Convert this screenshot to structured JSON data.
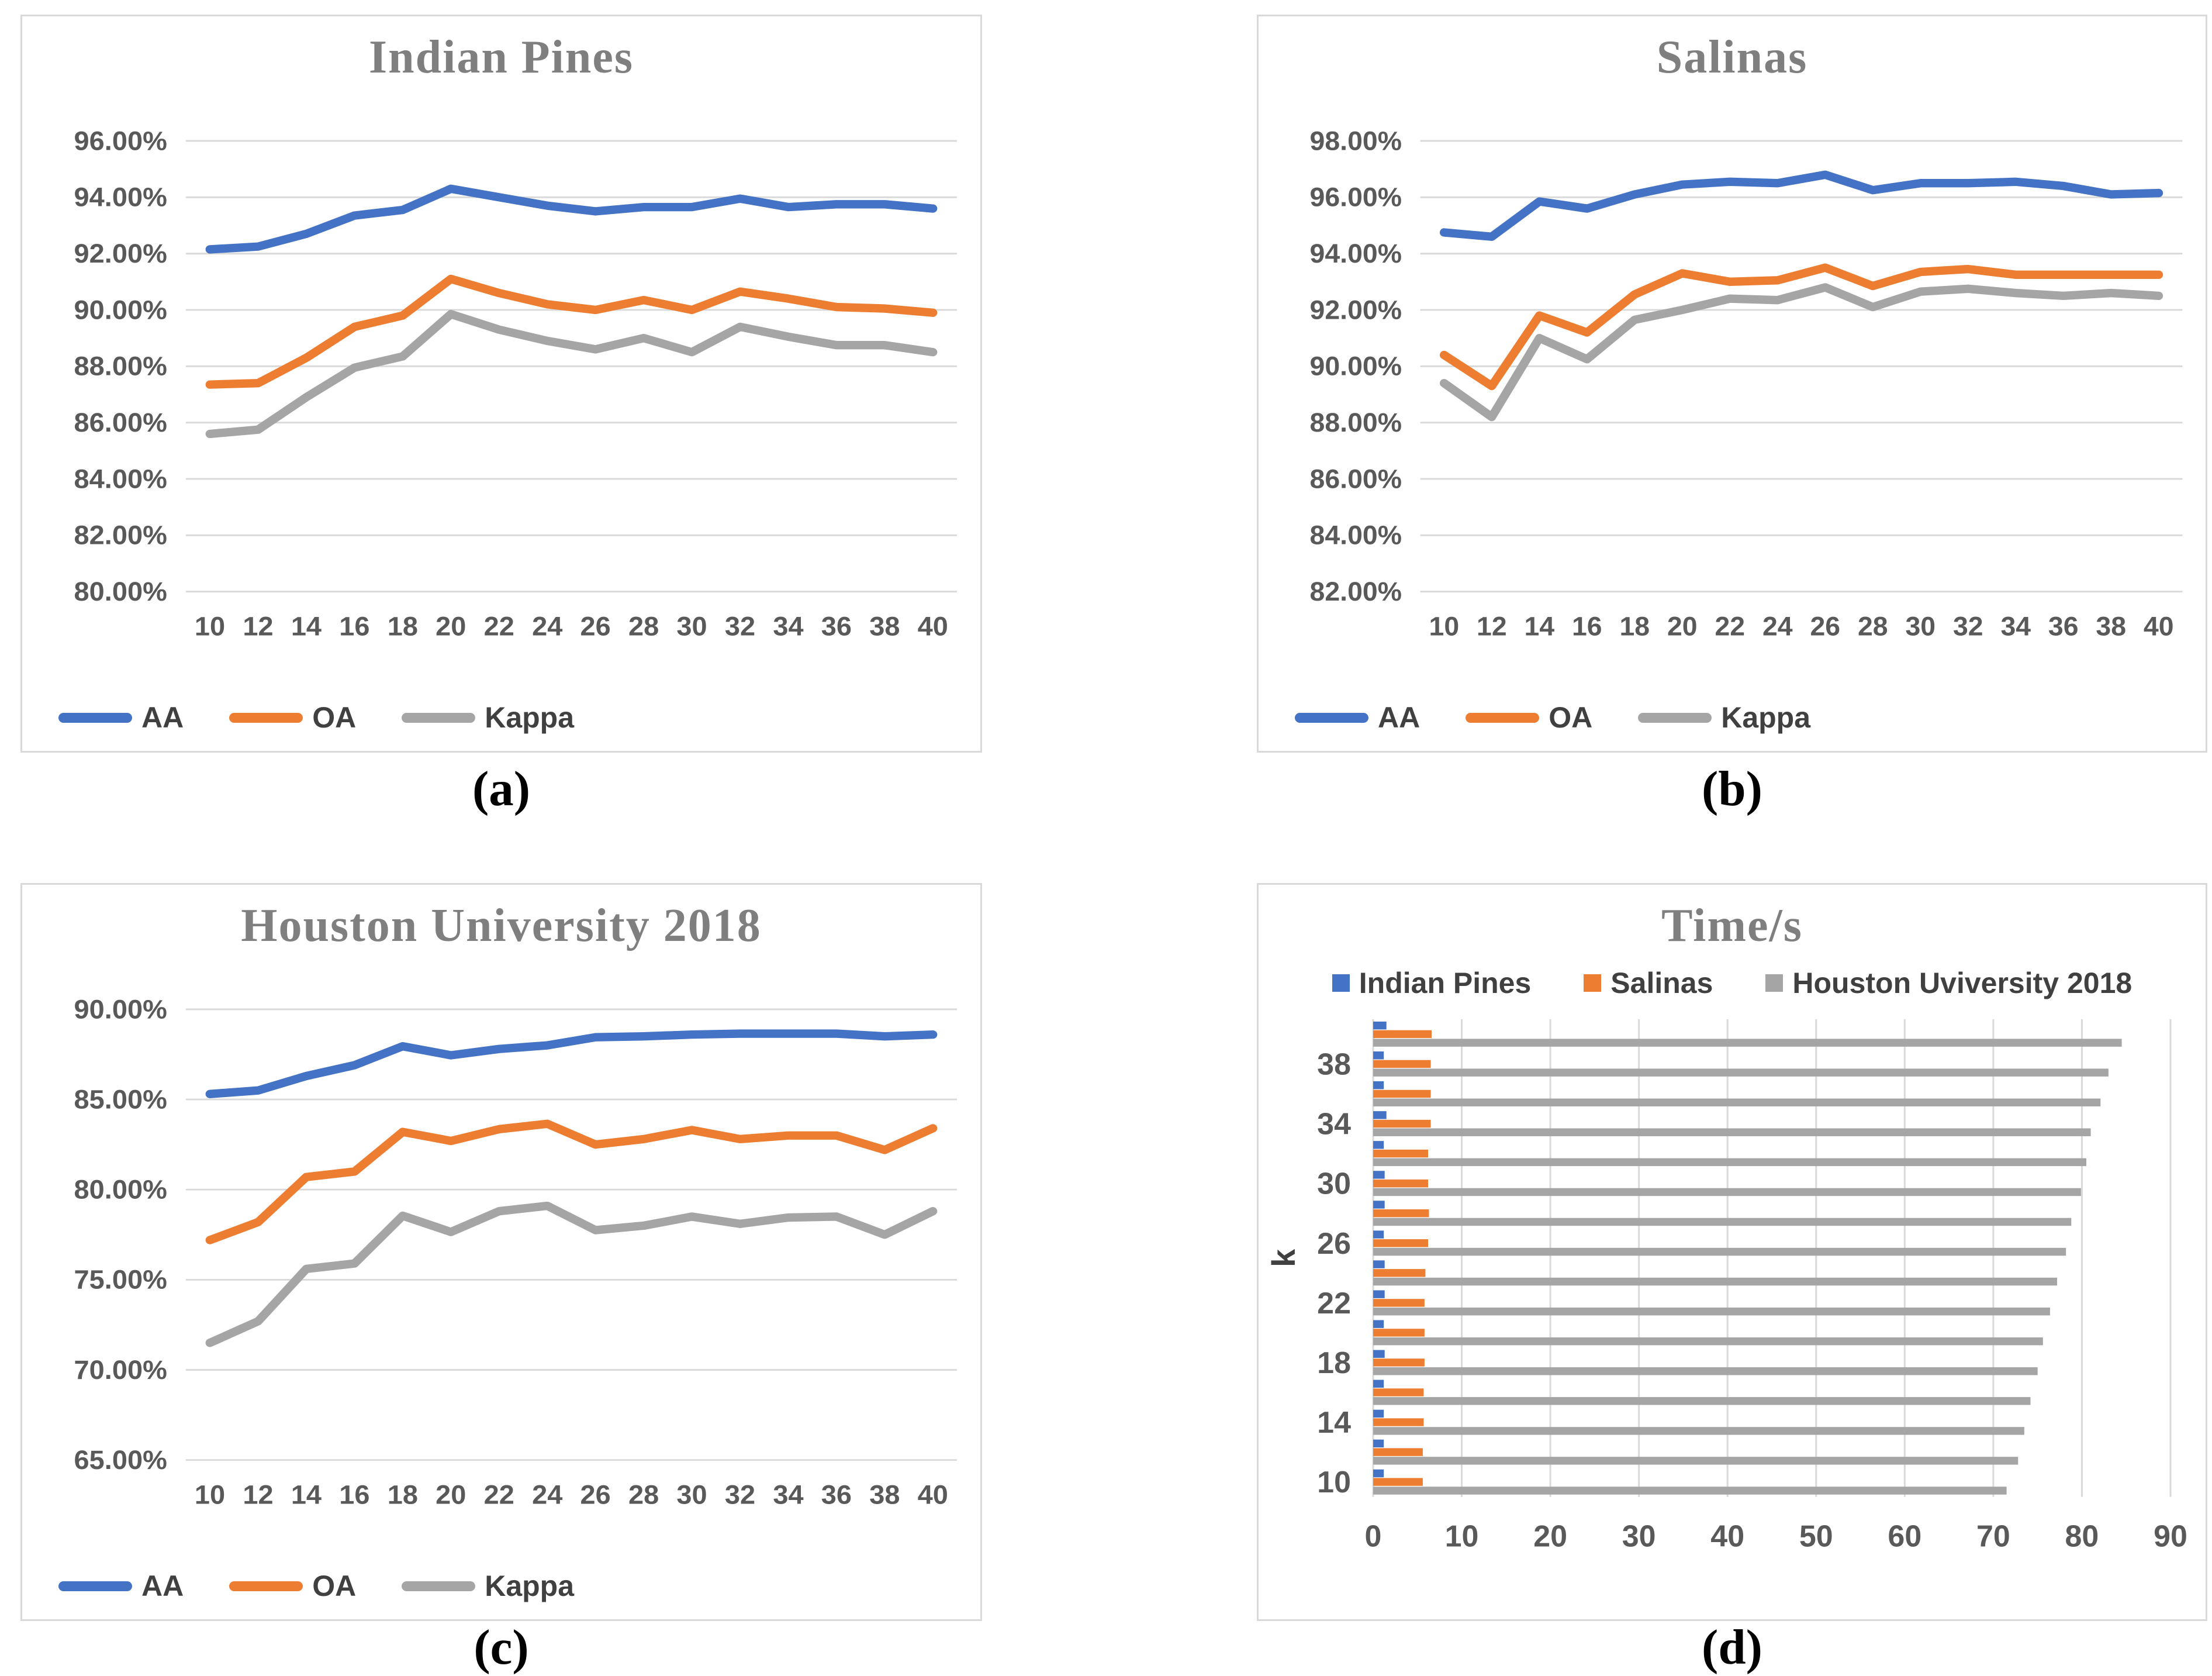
{
  "chart_data": [
    {
      "type": "line",
      "title": "Indian Pines",
      "caption": "(a)",
      "x": [
        10,
        12,
        14,
        16,
        18,
        20,
        22,
        24,
        26,
        28,
        30,
        32,
        34,
        36,
        38,
        40
      ],
      "xlabel": "",
      "ylabel": "",
      "ylim": [
        80,
        96
      ],
      "ytick_step": 2,
      "ytick_format": "percent-2dp",
      "grid": "horizontal",
      "legend_position": "bottom-left",
      "series": [
        {
          "name": "AA",
          "color": "#4472C4",
          "values": [
            92.15,
            92.25,
            92.7,
            93.35,
            93.55,
            94.3,
            94.0,
            93.7,
            93.5,
            93.65,
            93.65,
            93.95,
            93.65,
            93.75,
            93.75,
            93.6
          ]
        },
        {
          "name": "OA",
          "color": "#ED7D31",
          "values": [
            87.35,
            87.4,
            88.3,
            89.4,
            89.8,
            91.1,
            90.6,
            90.2,
            90.0,
            90.35,
            90.0,
            90.65,
            90.4,
            90.1,
            90.05,
            89.9
          ]
        },
        {
          "name": "Kappa",
          "color": "#A5A5A5",
          "values": [
            85.6,
            85.75,
            86.9,
            87.95,
            88.35,
            89.85,
            89.3,
            88.9,
            88.6,
            89.0,
            88.5,
            89.4,
            89.05,
            88.75,
            88.75,
            88.5
          ]
        }
      ]
    },
    {
      "type": "line",
      "title": "Salinas",
      "caption": "(b)",
      "x": [
        10,
        12,
        14,
        16,
        18,
        20,
        22,
        24,
        26,
        28,
        30,
        32,
        34,
        36,
        38,
        40
      ],
      "xlabel": "",
      "ylabel": "",
      "ylim": [
        82,
        98
      ],
      "ytick_step": 2,
      "ytick_format": "percent-2dp",
      "grid": "horizontal",
      "legend_position": "bottom-left",
      "series": [
        {
          "name": "AA",
          "color": "#4472C4",
          "values": [
            94.75,
            94.6,
            95.85,
            95.6,
            96.1,
            96.45,
            96.55,
            96.5,
            96.8,
            96.25,
            96.5,
            96.5,
            96.55,
            96.4,
            96.1,
            96.15
          ]
        },
        {
          "name": "OA",
          "color": "#ED7D31",
          "values": [
            90.4,
            89.3,
            91.8,
            91.2,
            92.55,
            93.3,
            93.0,
            93.05,
            93.5,
            92.85,
            93.35,
            93.45,
            93.25,
            93.25,
            93.25,
            93.25
          ]
        },
        {
          "name": "Kappa",
          "color": "#A5A5A5",
          "values": [
            89.4,
            88.2,
            91.0,
            90.25,
            91.65,
            92.0,
            92.4,
            92.35,
            92.8,
            92.1,
            92.65,
            92.75,
            92.6,
            92.5,
            92.6,
            92.5
          ]
        }
      ]
    },
    {
      "type": "line",
      "title": "Houston University 2018",
      "caption": "(c)",
      "x": [
        10,
        12,
        14,
        16,
        18,
        20,
        22,
        24,
        26,
        28,
        30,
        32,
        34,
        36,
        38,
        40
      ],
      "xlabel": "",
      "ylabel": "",
      "ylim": [
        65,
        90
      ],
      "ytick_step": 5,
      "ytick_format": "percent-2dp",
      "grid": "horizontal",
      "legend_position": "bottom-left",
      "series": [
        {
          "name": "AA",
          "color": "#4472C4",
          "values": [
            85.3,
            85.5,
            86.3,
            86.9,
            87.95,
            87.45,
            87.8,
            88.0,
            88.45,
            88.5,
            88.6,
            88.65,
            88.65,
            88.65,
            88.5,
            88.6
          ]
        },
        {
          "name": "OA",
          "color": "#ED7D31",
          "values": [
            77.2,
            78.2,
            80.7,
            81.0,
            83.2,
            82.7,
            83.35,
            83.65,
            82.5,
            82.8,
            83.3,
            82.8,
            83.0,
            83.0,
            82.2,
            83.4
          ]
        },
        {
          "name": "Kappa",
          "color": "#A5A5A5",
          "values": [
            71.5,
            72.7,
            75.6,
            75.9,
            78.55,
            77.65,
            78.8,
            79.1,
            77.75,
            78.0,
            78.5,
            78.1,
            78.45,
            78.5,
            77.5,
            78.8
          ]
        }
      ]
    },
    {
      "type": "bar",
      "orientation": "horizontal",
      "title": "Time/s",
      "caption": "(d)",
      "categories": [
        10,
        12,
        14,
        16,
        18,
        20,
        22,
        24,
        26,
        28,
        30,
        32,
        34,
        36,
        38,
        40
      ],
      "y_tick_labels": [
        "10",
        "14",
        "18",
        "22",
        "26",
        "30",
        "34",
        "38"
      ],
      "ylabel": "k",
      "xlim": [
        0,
        90
      ],
      "xtick_step": 10,
      "grid": "vertical",
      "legend_position": "top",
      "series": [
        {
          "name": "Indian Pines",
          "color": "#4472C4",
          "values": [
            1.2,
            1.2,
            1.2,
            1.2,
            1.3,
            1.2,
            1.3,
            1.3,
            1.2,
            1.3,
            1.3,
            1.2,
            1.5,
            1.2,
            1.2,
            1.5
          ]
        },
        {
          "name": "Salinas",
          "color": "#ED7D31",
          "values": [
            5.6,
            5.6,
            5.7,
            5.7,
            5.8,
            5.8,
            5.8,
            5.9,
            6.2,
            6.3,
            6.2,
            6.2,
            6.5,
            6.5,
            6.5,
            6.6
          ]
        },
        {
          "name": "Houston Uviversity 2018",
          "color": "#A5A5A5",
          "values": [
            71.5,
            72.8,
            73.5,
            74.2,
            75.0,
            75.6,
            76.4,
            77.2,
            78.2,
            78.8,
            79.9,
            80.5,
            81.0,
            82.1,
            83.0,
            84.5
          ]
        }
      ]
    }
  ]
}
